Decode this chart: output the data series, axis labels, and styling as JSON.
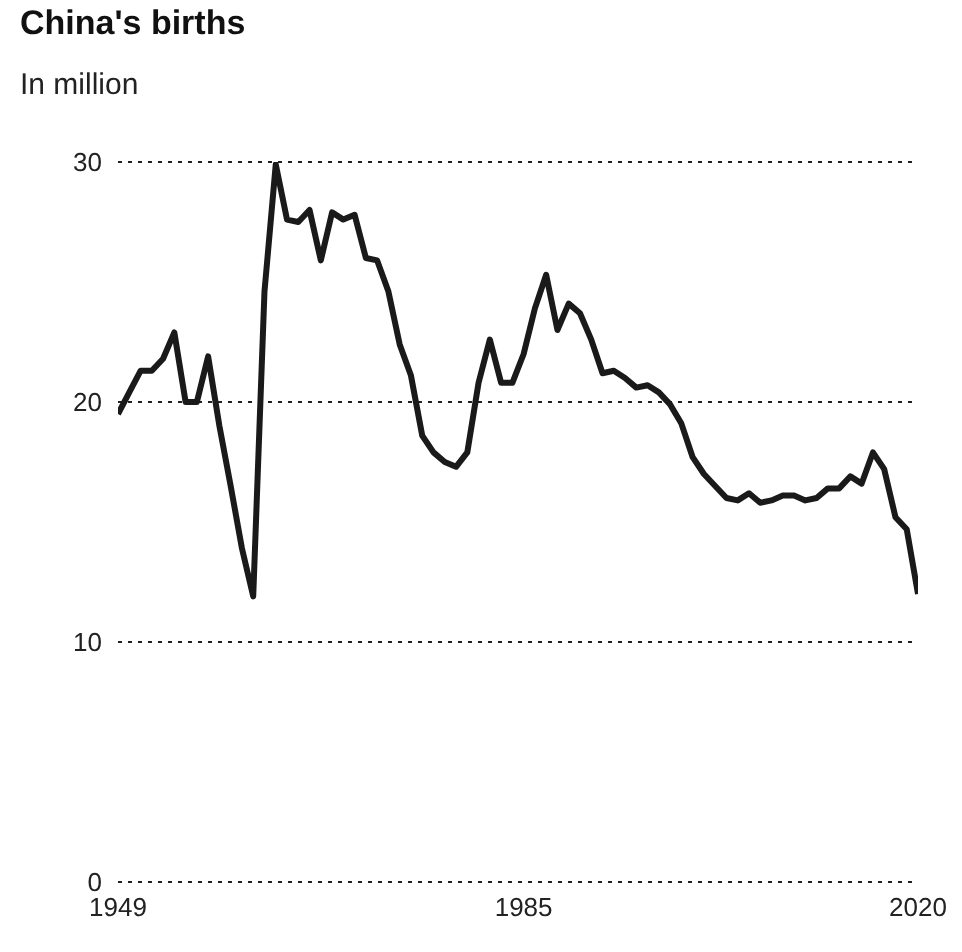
{
  "chart_data": {
    "type": "line",
    "title": "China's births",
    "subtitle": "In million",
    "x": [
      1949,
      1950,
      1951,
      1952,
      1953,
      1954,
      1955,
      1956,
      1957,
      1958,
      1959,
      1960,
      1961,
      1962,
      1963,
      1964,
      1965,
      1966,
      1967,
      1968,
      1969,
      1970,
      1971,
      1972,
      1973,
      1974,
      1975,
      1976,
      1977,
      1978,
      1979,
      1980,
      1981,
      1982,
      1983,
      1984,
      1985,
      1986,
      1987,
      1988,
      1989,
      1990,
      1991,
      1992,
      1993,
      1994,
      1995,
      1996,
      1997,
      1998,
      1999,
      2000,
      2001,
      2002,
      2003,
      2004,
      2005,
      2006,
      2007,
      2008,
      2009,
      2010,
      2011,
      2012,
      2013,
      2014,
      2015,
      2016,
      2017,
      2018,
      2019,
      2020
    ],
    "series": [
      {
        "color": "#1a1a1a",
        "values": [
          19.5,
          20.4,
          21.3,
          21.3,
          21.8,
          22.9,
          20.0,
          20.0,
          21.9,
          19.0,
          16.5,
          13.9,
          11.9,
          24.6,
          29.9,
          27.6,
          27.5,
          28.0,
          25.9,
          27.9,
          27.6,
          27.8,
          26.0,
          25.9,
          24.6,
          22.4,
          21.1,
          18.6,
          17.9,
          17.5,
          17.3,
          17.9,
          20.8,
          22.6,
          20.8,
          20.8,
          22.0,
          23.9,
          25.3,
          23.0,
          24.1,
          23.7,
          22.6,
          21.2,
          21.3,
          21.0,
          20.6,
          20.7,
          20.4,
          19.9,
          19.1,
          17.7,
          17.0,
          16.5,
          16.0,
          15.9,
          16.2,
          15.8,
          15.9,
          16.1,
          16.1,
          15.9,
          16.0,
          16.4,
          16.4,
          16.9,
          16.6,
          17.9,
          17.2,
          15.2,
          14.7,
          12.0
        ]
      }
    ],
    "xlim": [
      1949,
      2020
    ],
    "xticks": [
      1949,
      1985,
      2020
    ],
    "ylim": [
      0,
      30
    ],
    "yticks": [
      0,
      10,
      20,
      30
    ],
    "grid": "y",
    "marker": "none",
    "line_style": "solid"
  }
}
